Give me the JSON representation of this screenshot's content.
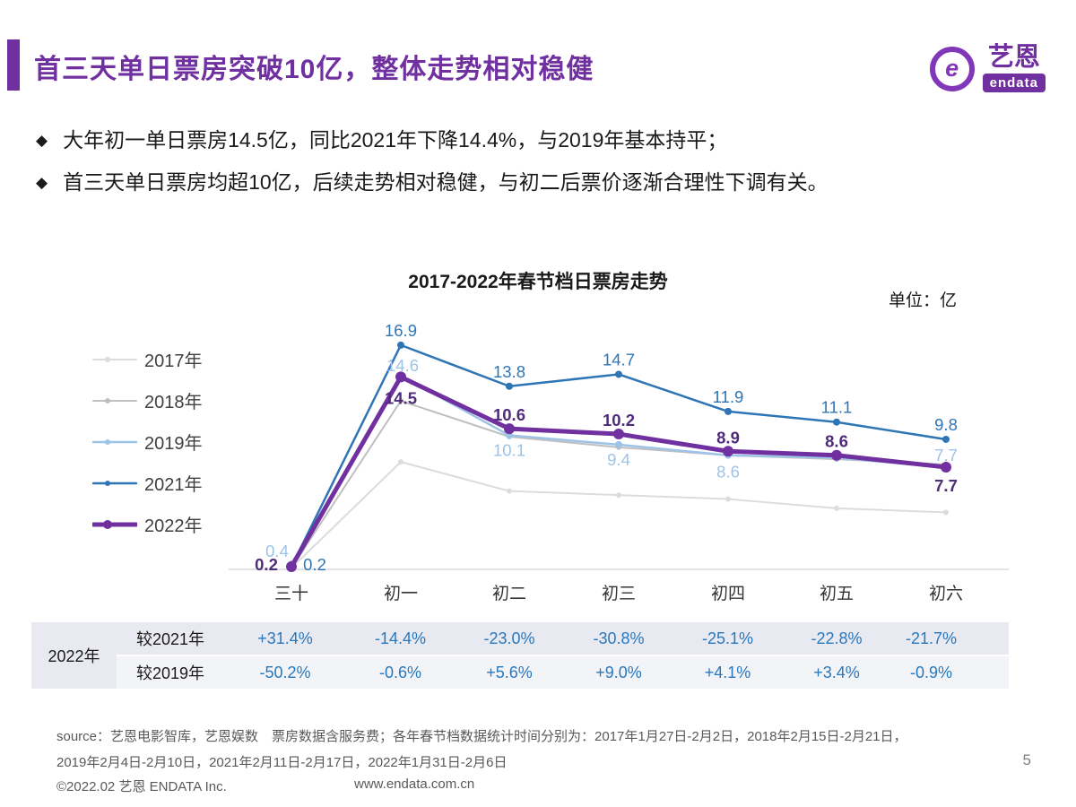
{
  "header": {
    "title": "首三天单日票房突破10亿，整体走势相对稳健",
    "logo": {
      "icon": "e",
      "brand": "艺恩",
      "sub": "endata"
    }
  },
  "bullets": [
    "大年初一单日票房14.5亿，同比2021年下降14.4%，与2019年基本持平；",
    "首三天单日票房均超10亿，后续走势相对稳健，与初二后票价逐渐合理性下调有关。"
  ],
  "chart": {
    "title": "2017-2022年春节档日票房走势",
    "unit_label": "单位：亿"
  },
  "chart_data": {
    "type": "line",
    "title": "2017-2022年春节档日票房走势",
    "unit": "亿",
    "categories": [
      "三十",
      "初一",
      "初二",
      "初三",
      "初四",
      "初五",
      "初六"
    ],
    "ylim": [
      0,
      18
    ],
    "grid": false,
    "legend_position": "left",
    "series": [
      {
        "name": "2017年",
        "color": "#dcdcdc",
        "width": 2,
        "marker": 3,
        "values": [
          0.1,
          8.1,
          5.9,
          5.6,
          5.3,
          4.6,
          4.3
        ]
      },
      {
        "name": "2018年",
        "color": "#bfbfbf",
        "width": 2,
        "marker": 3,
        "values": [
          0.1,
          12.7,
          10.0,
          9.2,
          8.6,
          8.3,
          7.9
        ]
      },
      {
        "name": "2019年",
        "color": "#9dc3e6",
        "width": 2.5,
        "marker": 4,
        "values": [
          0.4,
          14.6,
          10.1,
          9.4,
          8.6,
          8.4,
          7.7
        ],
        "labels": [
          "0.4",
          "14.6",
          "10.1",
          "9.4",
          "8.6",
          "",
          "7.7"
        ]
      },
      {
        "name": "2021年",
        "color": "#2e75b6",
        "width": 2.5,
        "marker": 4,
        "values": [
          0.2,
          16.9,
          13.8,
          14.7,
          11.9,
          11.1,
          9.8
        ],
        "labels": [
          "0.2",
          "16.9",
          "13.8",
          "14.7",
          "11.9",
          "11.1",
          "9.8"
        ]
      },
      {
        "name": "2022年",
        "color": "#7030a0",
        "width": 5,
        "marker": 6,
        "label_color": "#4f2b7c",
        "values": [
          0.2,
          14.5,
          10.6,
          10.2,
          8.9,
          8.6,
          7.7
        ],
        "labels": [
          "0.2",
          "14.5",
          "10.6",
          "10.2",
          "8.9",
          "8.6",
          "7.7"
        ]
      }
    ]
  },
  "table": {
    "row_group": "2022年",
    "rows": [
      {
        "header": "较2021年",
        "values": [
          "+31.4%",
          "-14.4%",
          "-23.0%",
          "-30.8%",
          "-25.1%",
          "-22.8%",
          "-21.7%"
        ]
      },
      {
        "header": "较2019年",
        "values": [
          "-50.2%",
          "-0.6%",
          "+5.6%",
          "+9.0%",
          "+4.1%",
          "+3.4%",
          "-0.9%"
        ]
      }
    ]
  },
  "footer": {
    "source_line1": "source：艺恩电影智库，艺恩娱数　票房数据含服务费；各年春节档数据统计时间分别为：2017年1月27日-2月2日，2018年2月15日-2月21日，",
    "source_line2": "2019年2月4日-2月10日，2021年2月11日-2月17日，2022年1月31日-2月6日",
    "copyright": "©2022.02 艺恩 ENDATA Inc.",
    "website": "www.endata.com.cn",
    "page_number": "5"
  },
  "colors": {
    "accent_purple": "#7030a0",
    "table_value_blue": "#2878be"
  }
}
